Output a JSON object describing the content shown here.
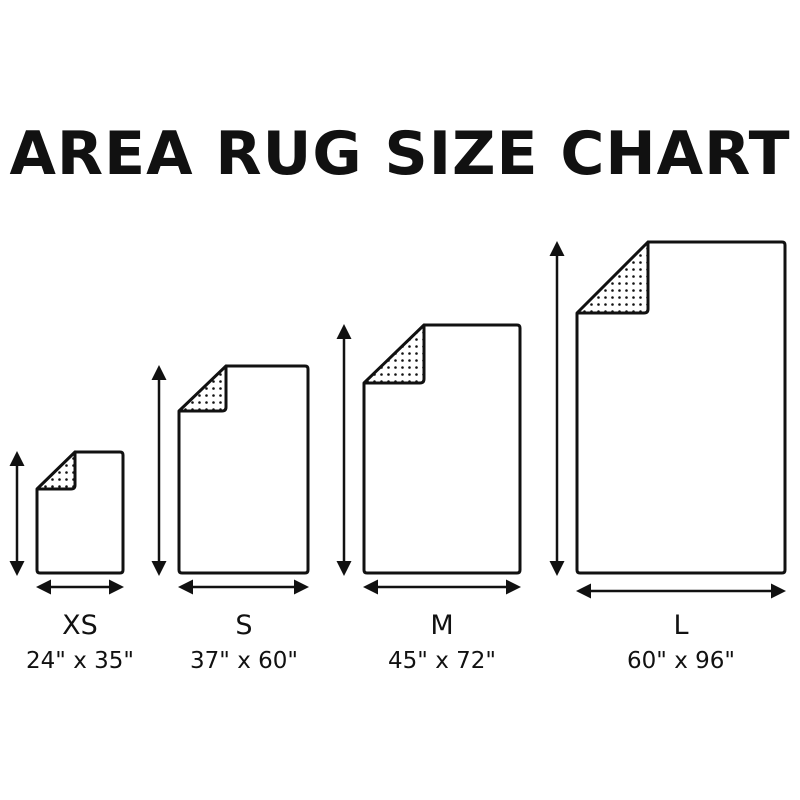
{
  "title": "AREA RUG SIZE CHART",
  "colors": {
    "stroke": "#111111",
    "background": "#ffffff"
  },
  "rugs": [
    {
      "size": "XS",
      "dimensions": "24\" x 35\"",
      "width_in": 24,
      "length_in": 35
    },
    {
      "size": "S",
      "dimensions": "37\" x 60\"",
      "width_in": 37,
      "length_in": 60
    },
    {
      "size": "M",
      "dimensions": "45\" x 72\"",
      "width_in": 45,
      "length_in": 72
    },
    {
      "size": "L",
      "dimensions": "60\" x 96\"",
      "width_in": 60,
      "length_in": 96
    }
  ]
}
